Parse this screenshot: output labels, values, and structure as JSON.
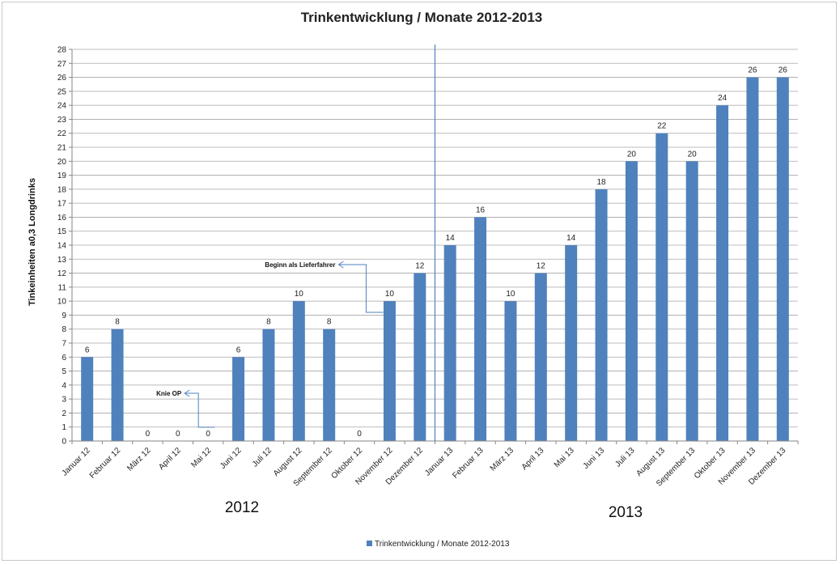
{
  "chart_data": {
    "type": "bar",
    "title": "Trinkentwicklung / Monate  2012-2013",
    "xlabel": "",
    "ylabel": "Tinkeinheiten a0,3 Longdrinks",
    "ylim": [
      0,
      28
    ],
    "ytick_step": 1,
    "grid": true,
    "legend_position": "bottom",
    "series": [
      {
        "name": "Trinkentwicklung / Monate  2012-2013",
        "color": "#4f81bd",
        "values": [
          6,
          8,
          0,
          0,
          0,
          6,
          8,
          10,
          8,
          0,
          10,
          12,
          14,
          16,
          10,
          12,
          14,
          18,
          20,
          22,
          20,
          24,
          26,
          26
        ]
      }
    ],
    "categories": [
      "Januar 12",
      "Februar 12",
      "März 12",
      "April 12",
      "Mai 12",
      "Juni 12",
      "Juli 12",
      "August 12",
      "September 12",
      "Oktober 12",
      "November 12",
      "Dezember 12",
      "Januar 13",
      "Februar 13",
      "März 13",
      "April 13",
      "Mai 13",
      "Juni 13",
      "Juli 13",
      "August 13",
      "September 13",
      "Oktober 13",
      "November 13",
      "Dezember 13"
    ],
    "year_labels": [
      "2012",
      "2013"
    ],
    "annotations": [
      {
        "text": "Knie OP",
        "category_index": 4
      },
      {
        "text": "Beginn als Lieferfahrer",
        "category_index": 10
      }
    ],
    "divider_after_category_index": 11,
    "divider_color": "#4f81bd",
    "grid_color": "#a6a6a6",
    "axis_color": "#868686",
    "annotation_color": "#4f81bd"
  }
}
